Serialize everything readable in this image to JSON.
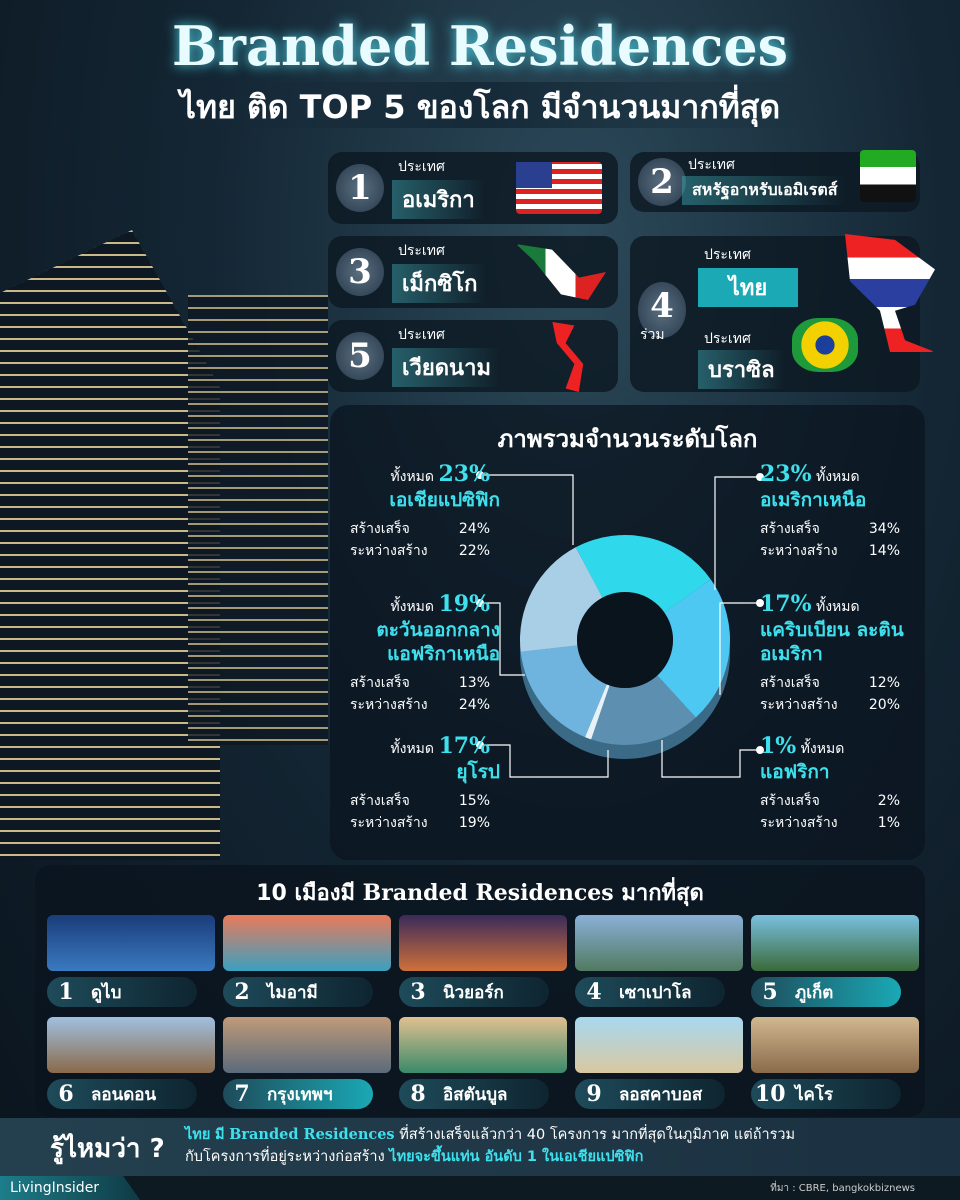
{
  "header": {
    "title": "Branded Residences",
    "subtitle": "ไทย ติด TOP 5 ของโลก มีจำนวนมากที่สุด"
  },
  "ranking": {
    "country_label": "ประเทศ",
    "joint_label": "ร่วม",
    "items": [
      {
        "rank": "1",
        "name": "อเมริกา"
      },
      {
        "rank": "2",
        "name": "สหรัฐอาหรับเอมิเรตส์"
      },
      {
        "rank": "3",
        "name": "เม็กซิโก"
      },
      {
        "rank": "4",
        "name": "ไทย"
      },
      {
        "rank": "4",
        "name": "บราซิล"
      },
      {
        "rank": "5",
        "name": "เวียดนาม"
      }
    ]
  },
  "overview": {
    "title": "ภาพรวมจำนวนระดับโลก",
    "total_label": "ทั้งหมด",
    "done_label": "สร้างเสร็จ",
    "building_label": "ระหว่างสร้าง"
  },
  "chart_data": {
    "type": "pie",
    "donut": true,
    "title": "ภาพรวมจำนวนระดับโลก",
    "categories": [
      "เอเชียแปซิฟิก",
      "อเมริกาเหนือ",
      "แคริบเบียน ละตินอเมริกา",
      "แอฟริกา",
      "ยุโรป",
      "ตะวันออกกลาง แอฟริกาเหนือ"
    ],
    "values": [
      23,
      23,
      17,
      1,
      17,
      19
    ],
    "regions": [
      {
        "name": "เอเชียแปซิฟิก",
        "total": "23%",
        "done": "24%",
        "building": "22%",
        "color": "#2fd8ea"
      },
      {
        "name": "อเมริกาเหนือ",
        "total": "23%",
        "done": "34%",
        "building": "14%",
        "color": "#4cc8f2"
      },
      {
        "name": "แคริบเบียน ละตินอเมริกา",
        "total": "17%",
        "done": "12%",
        "building": "20%",
        "color": "#5c8fb0"
      },
      {
        "name": "แอฟริกา",
        "total": "1%",
        "done": "2%",
        "building": "1%",
        "color": "#e6f2f6"
      },
      {
        "name": "ยุโรป",
        "total": "17%",
        "done": "15%",
        "building": "19%",
        "color": "#6fb4de"
      },
      {
        "name": "ตะวันออกกลาง แอฟริกาเหนือ",
        "total": "19%",
        "done": "13%",
        "building": "24%",
        "color": "#a9cfe6"
      }
    ]
  },
  "cities": {
    "title_pre": "10 เมืองมี",
    "title_brand": "Branded Residences",
    "title_post": "มากที่สุด",
    "items": [
      {
        "rank": "1",
        "name": "ดูไบ"
      },
      {
        "rank": "2",
        "name": "ไมอามี"
      },
      {
        "rank": "3",
        "name": "นิวยอร์ก"
      },
      {
        "rank": "4",
        "name": "เซาเปาโล"
      },
      {
        "rank": "5",
        "name": "ภูเก็ต"
      },
      {
        "rank": "6",
        "name": "ลอนดอน"
      },
      {
        "rank": "7",
        "name": "กรุงเทพฯ"
      },
      {
        "rank": "8",
        "name": "อิสตันบูล"
      },
      {
        "rank": "9",
        "name": "ลอสคาบอส"
      },
      {
        "rank": "10",
        "name": "ไคโร"
      }
    ]
  },
  "fact": {
    "heading": "รู้ไหมว่า ?",
    "p1": "ไทย",
    "p2": "มี",
    "p3": "Branded Residences",
    "p4": "ที่สร้างเสร็จแล้วกว่า 40 โครงการ มากที่สุดในภูมิภาค แต่ถ้ารวม",
    "p5": "กับโครงการที่อยู่ระหว่างก่อสร้าง",
    "p6": "ไทยจะขึ้นแท่น อันดับ 1 ในเอเชียแปซิฟิก"
  },
  "footer": {
    "logo": "LivingInsider",
    "source": "ที่มา : CBRE, bangkokbiznews"
  }
}
